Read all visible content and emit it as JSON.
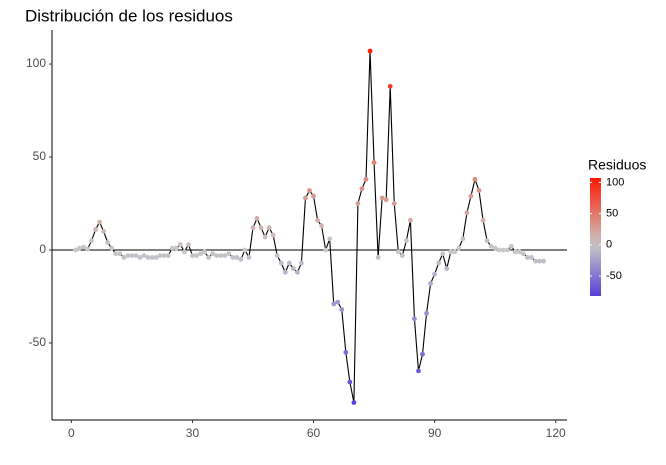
{
  "chart_data": {
    "type": "line",
    "title": "Distribución de los residuos",
    "x": [
      1,
      2,
      3,
      4,
      5,
      6,
      7,
      8,
      9,
      10,
      11,
      12,
      13,
      14,
      15,
      16,
      17,
      18,
      19,
      20,
      21,
      22,
      23,
      24,
      25,
      26,
      27,
      28,
      29,
      30,
      31,
      32,
      33,
      34,
      35,
      36,
      37,
      38,
      39,
      40,
      41,
      42,
      43,
      44,
      45,
      46,
      47,
      48,
      49,
      50,
      51,
      52,
      53,
      54,
      55,
      56,
      57,
      58,
      59,
      60,
      61,
      62,
      63,
      64,
      65,
      66,
      67,
      68,
      69,
      70,
      71,
      72,
      73,
      74,
      75,
      76,
      77,
      78,
      79,
      80,
      81,
      82,
      83,
      84,
      85,
      86,
      87,
      88,
      89,
      90,
      91,
      92,
      93,
      94,
      95,
      96,
      97,
      98,
      99,
      100,
      101,
      102,
      103,
      104,
      105,
      106,
      107,
      108,
      109,
      110,
      111,
      112,
      113,
      114,
      115,
      116,
      117
    ],
    "values": [
      0,
      1,
      1.5,
      0.5,
      5,
      11,
      15,
      10,
      4,
      1,
      -2,
      -2,
      -4,
      -3,
      -3,
      -3,
      -4,
      -3,
      -4,
      -4,
      -4,
      -3,
      -3,
      -3,
      1,
      1,
      3,
      -1,
      3,
      -3,
      -3,
      -2,
      -1,
      -4,
      -2,
      -3,
      -3,
      -3,
      -2,
      -4,
      -4,
      -5,
      0,
      -4,
      12,
      17,
      12,
      7,
      12,
      8,
      -3,
      -7,
      -12,
      -7,
      -10,
      -12,
      -7,
      28,
      32,
      29,
      16,
      13,
      0,
      6,
      -29,
      -28,
      -32,
      -55,
      -71,
      -82,
      25,
      33,
      38,
      107,
      47,
      -4,
      28,
      27,
      88,
      25,
      -1,
      -3,
      5,
      16,
      -37,
      -65,
      -56,
      -34,
      -18,
      -13,
      -7,
      -2,
      -10,
      -1,
      -1,
      1,
      6,
      20,
      29,
      38,
      32,
      16,
      5,
      2,
      1,
      0,
      0,
      0,
      2,
      -1,
      -1,
      -2,
      -4,
      -4,
      -6,
      -6,
      -6
    ],
    "xlim": [
      -4.8,
      122.8
    ],
    "xticks": [
      0,
      30,
      60,
      90,
      120
    ],
    "ylim": [
      -91.4,
      118.3
    ],
    "yticks": [
      -50,
      0,
      50,
      100
    ],
    "hline": 0,
    "line_color": "#000000",
    "legend": {
      "title": "Residuos",
      "ticks": [
        -50,
        0,
        50,
        100
      ]
    },
    "color_scale": {
      "low": "#5a3fd6",
      "mid": "#c8c8c8",
      "high": "#ff1a00"
    }
  }
}
